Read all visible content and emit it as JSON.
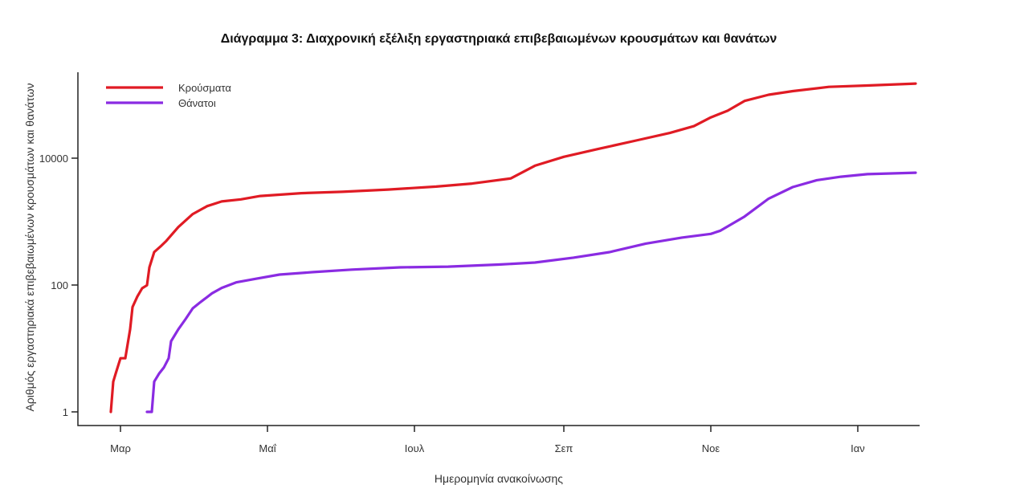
{
  "chart_data": {
    "type": "line",
    "title": "Διάγραμμα 3: Διαχρονική εξέλιξη εργαστηριακά επιβεβαιωμένων κρουσμάτων και θανάτων",
    "xlabel": "Ημερομηνία ανακοίνωσης",
    "ylabel": "Αριθμός εργαστηριακά επιβεβαιωμένων κρουσμάτων και θανάτων",
    "y_scale": "log",
    "ylim": [
      1,
      150000
    ],
    "x_ticks": [
      "Μαρ",
      "Μαΐ",
      "Ιουλ",
      "Σεπ",
      "Νοε",
      "Ιαν"
    ],
    "y_ticks": [
      "1",
      "100",
      "10000"
    ],
    "grid": false,
    "legend_position": "top-left",
    "series": [
      {
        "name": "Κρούσματα",
        "color": "#e01b24",
        "points": [
          [
            "2020-02-26",
            1
          ],
          [
            "2020-02-27",
            3
          ],
          [
            "2020-02-28",
            4
          ],
          [
            "2020-03-01",
            7
          ],
          [
            "2020-03-03",
            7
          ],
          [
            "2020-03-05",
            20
          ],
          [
            "2020-03-06",
            45
          ],
          [
            "2020-03-08",
            66
          ],
          [
            "2020-03-10",
            89
          ],
          [
            "2020-03-12",
            99
          ],
          [
            "2020-03-13",
            190
          ],
          [
            "2020-03-15",
            331
          ],
          [
            "2020-03-18",
            418
          ],
          [
            "2020-03-20",
            495
          ],
          [
            "2020-03-25",
            821
          ],
          [
            "2020-03-31",
            1314
          ],
          [
            "2020-04-06",
            1755
          ],
          [
            "2020-04-12",
            2081
          ],
          [
            "2020-04-20",
            2245
          ],
          [
            "2020-04-28",
            2534
          ],
          [
            "2020-05-15",
            2810
          ],
          [
            "2020-06-01",
            2952
          ],
          [
            "2020-06-20",
            3203
          ],
          [
            "2020-07-10",
            3562
          ],
          [
            "2020-07-25",
            3983
          ],
          [
            "2020-08-10",
            4800
          ],
          [
            "2020-08-20",
            7600
          ],
          [
            "2020-09-01",
            10500
          ],
          [
            "2020-09-15",
            13900
          ],
          [
            "2020-10-01",
            19000
          ],
          [
            "2020-10-15",
            25000
          ],
          [
            "2020-10-25",
            32000
          ],
          [
            "2020-11-01",
            44000
          ],
          [
            "2020-11-08",
            56000
          ],
          [
            "2020-11-15",
            80000
          ],
          [
            "2020-11-25",
            100000
          ],
          [
            "2020-12-05",
            114000
          ],
          [
            "2020-12-20",
            133000
          ],
          [
            "2021-01-05",
            140000
          ],
          [
            "2021-01-25",
            150000
          ]
        ]
      },
      {
        "name": "Θάνατοι",
        "color": "#8a2be2",
        "points": [
          [
            "2020-03-12",
            1
          ],
          [
            "2020-03-14",
            1
          ],
          [
            "2020-03-15",
            3
          ],
          [
            "2020-03-17",
            4
          ],
          [
            "2020-03-19",
            5
          ],
          [
            "2020-03-21",
            7
          ],
          [
            "2020-03-22",
            13
          ],
          [
            "2020-03-25",
            20
          ],
          [
            "2020-03-28",
            29
          ],
          [
            "2020-03-31",
            43
          ],
          [
            "2020-04-03",
            53
          ],
          [
            "2020-04-08",
            74
          ],
          [
            "2020-04-12",
            90
          ],
          [
            "2020-04-18",
            110
          ],
          [
            "2020-04-26",
            125
          ],
          [
            "2020-05-06",
            146
          ],
          [
            "2020-05-20",
            160
          ],
          [
            "2020-06-05",
            175
          ],
          [
            "2020-06-25",
            190
          ],
          [
            "2020-07-15",
            195
          ],
          [
            "2020-08-05",
            210
          ],
          [
            "2020-08-20",
            226
          ],
          [
            "2020-09-05",
            270
          ],
          [
            "2020-09-20",
            330
          ],
          [
            "2020-10-05",
            450
          ],
          [
            "2020-10-20",
            560
          ],
          [
            "2020-11-01",
            640
          ],
          [
            "2020-11-05",
            720
          ],
          [
            "2020-11-15",
            1200
          ],
          [
            "2020-11-25",
            2300
          ],
          [
            "2020-12-05",
            3500
          ],
          [
            "2020-12-15",
            4500
          ],
          [
            "2020-12-25",
            5100
          ],
          [
            "2021-01-05",
            5600
          ],
          [
            "2021-01-25",
            5900
          ]
        ]
      }
    ]
  }
}
